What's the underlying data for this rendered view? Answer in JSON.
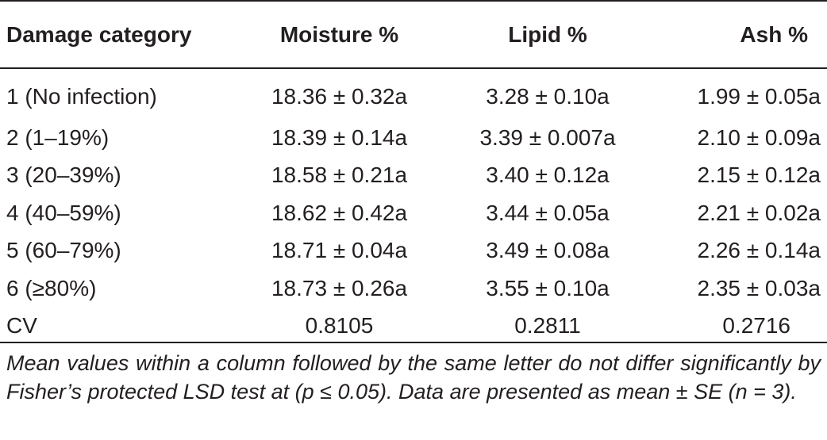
{
  "table": {
    "headers": [
      "Damage category",
      "Moisture %",
      "Lipid %",
      "Ash %"
    ],
    "rows": [
      [
        "1 (No infection)",
        "18.36 ± 0.32a",
        "3.28 ± 0.10a",
        "1.99 ± 0.05a"
      ],
      [
        "2 (1–19%)",
        "18.39 ± 0.14a",
        "3.39 ± 0.007a",
        "2.10 ± 0.09a"
      ],
      [
        "3 (20–39%)",
        "18.58 ± 0.21a",
        "3.40 ± 0.12a",
        "2.15 ± 0.12a"
      ],
      [
        "4 (40–59%)",
        "18.62 ± 0.42a",
        "3.44 ± 0.05a",
        "2.21 ± 0.02a"
      ],
      [
        "5 (60–79%)",
        "18.71 ± 0.04a",
        "3.49 ± 0.08a",
        "2.26 ± 0.14a"
      ],
      [
        "6 (≥80%)",
        "18.73 ± 0.26a",
        "3.55 ± 0.10a",
        "2.35 ± 0.03a"
      ],
      [
        "CV",
        "0.8105",
        "0.2811",
        "0.2716"
      ]
    ]
  },
  "footnote": "Mean values within a column followed by the same letter do not differ significantly by Fisher’s protected LSD test at (p ≤ 0.05). Data are presented as mean ± SE (n = 3)."
}
